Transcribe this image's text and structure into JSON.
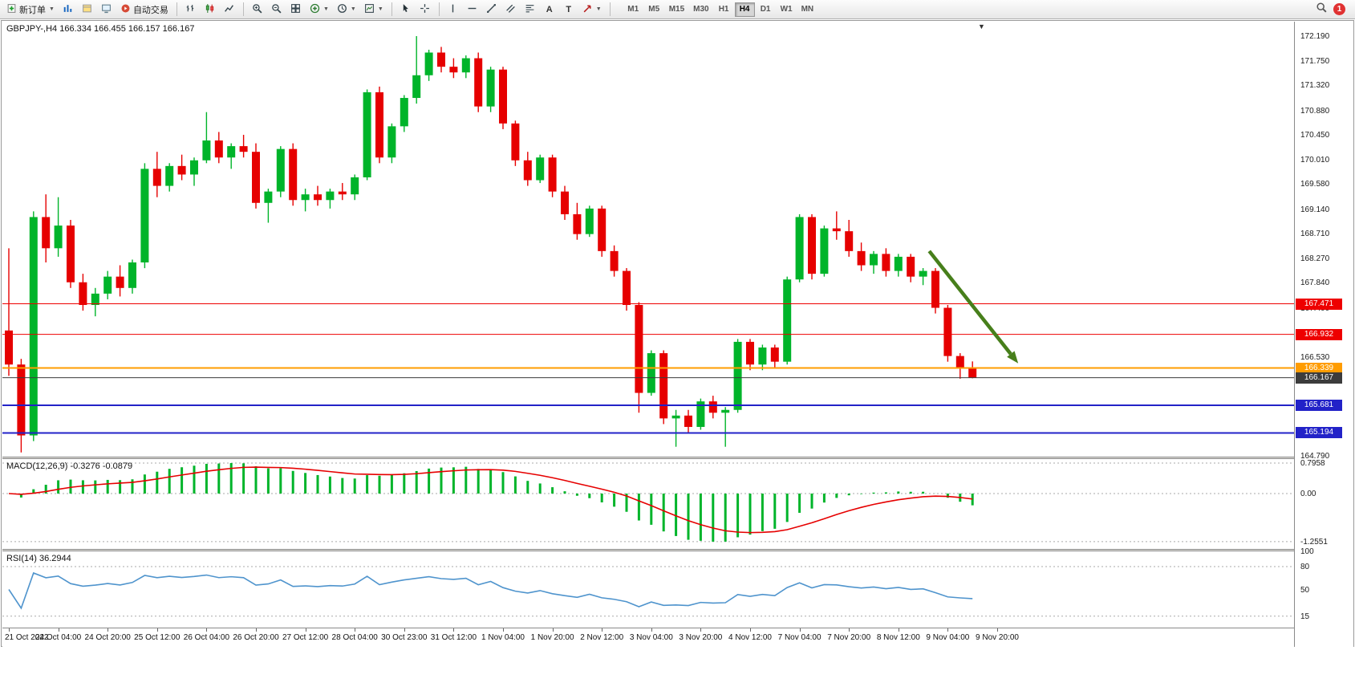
{
  "toolbar": {
    "new_order_label": "新订单",
    "autotrading_label": "自动交易",
    "text_tool_label": "A",
    "label_tool_label": "T",
    "timeframes": [
      "M1",
      "M5",
      "M15",
      "M30",
      "H1",
      "H4",
      "D1",
      "W1",
      "MN"
    ],
    "active_timeframe": "H4",
    "notification_count": "1"
  },
  "chart_title": "GBPJPY-,H4  166.334 166.455 166.157 166.167",
  "macd_panel": {
    "label": "MACD(12,26,9) -0.3276 -0.0879",
    "axis_labels": [
      "0.7958",
      "0.00",
      "-1.2551"
    ],
    "value": -0.3276,
    "signal_value": -0.0879
  },
  "rsi_panel": {
    "label": "RSI(14) 36.2944",
    "axis_labels": [
      "100",
      "80",
      "50",
      "15"
    ],
    "levels": [
      80,
      15
    ],
    "value": 36.2944
  },
  "chart_data": {
    "type": "candlestick",
    "title": "GBPJPY-,H4",
    "symbol": "GBPJPY-",
    "timeframe": "H4",
    "current_ohlc": {
      "open": 166.334,
      "high": 166.455,
      "low": 166.157,
      "close": 166.167
    },
    "y_axis_ticks": [
      172.19,
      171.75,
      171.32,
      170.88,
      170.45,
      170.01,
      169.58,
      169.14,
      168.71,
      168.27,
      167.84,
      167.4,
      166.97,
      166.53,
      166.1,
      165.66,
      165.23,
      164.79
    ],
    "x_labels": [
      "21 Oct 2022",
      "24 Oct 04:00",
      "24 Oct 20:00",
      "25 Oct 12:00",
      "26 Oct 04:00",
      "26 Oct 20:00",
      "27 Oct 12:00",
      "28 Oct 04:00",
      "30 Oct 23:00",
      "31 Oct 12:00",
      "1 Nov 04:00",
      "1 Nov 20:00",
      "2 Nov 12:00",
      "3 Nov 04:00",
      "3 Nov 20:00",
      "4 Nov 12:00",
      "7 Nov 04:00",
      "7 Nov 20:00",
      "8 Nov 12:00",
      "9 Nov 04:00",
      "9 Nov 20:00"
    ],
    "candles_per_x_label": 4,
    "candles_ohlc": [
      [
        167.0,
        168.45,
        166.2,
        166.4
      ],
      [
        166.4,
        166.5,
        164.85,
        165.15
      ],
      [
        165.15,
        169.1,
        165.05,
        169.0
      ],
      [
        169.0,
        169.4,
        168.2,
        168.45
      ],
      [
        168.45,
        169.35,
        168.3,
        168.85
      ],
      [
        168.85,
        168.95,
        167.75,
        167.85
      ],
      [
        167.85,
        168.0,
        167.35,
        167.45
      ],
      [
        167.45,
        167.75,
        167.25,
        167.65
      ],
      [
        167.65,
        168.05,
        167.55,
        167.95
      ],
      [
        167.95,
        168.15,
        167.6,
        167.75
      ],
      [
        167.75,
        168.25,
        167.65,
        168.2
      ],
      [
        168.2,
        169.95,
        168.1,
        169.85
      ],
      [
        169.85,
        170.15,
        169.35,
        169.55
      ],
      [
        169.55,
        169.95,
        169.45,
        169.9
      ],
      [
        169.9,
        170.1,
        169.65,
        169.75
      ],
      [
        169.75,
        170.05,
        169.55,
        170.0
      ],
      [
        170.0,
        170.85,
        169.95,
        170.35
      ],
      [
        170.35,
        170.5,
        169.95,
        170.05
      ],
      [
        170.05,
        170.3,
        169.85,
        170.25
      ],
      [
        170.25,
        170.45,
        170.05,
        170.15
      ],
      [
        170.15,
        170.3,
        169.15,
        169.25
      ],
      [
        169.25,
        169.5,
        168.9,
        169.45
      ],
      [
        169.45,
        170.25,
        169.35,
        170.2
      ],
      [
        170.2,
        170.3,
        169.2,
        169.3
      ],
      [
        169.3,
        169.5,
        169.1,
        169.4
      ],
      [
        169.4,
        169.55,
        169.2,
        169.3
      ],
      [
        169.3,
        169.5,
        169.15,
        169.45
      ],
      [
        169.45,
        169.6,
        169.3,
        169.4
      ],
      [
        169.4,
        169.75,
        169.3,
        169.7
      ],
      [
        169.7,
        171.25,
        169.65,
        171.2
      ],
      [
        171.2,
        171.3,
        169.95,
        170.05
      ],
      [
        170.05,
        170.65,
        169.95,
        170.6
      ],
      [
        170.6,
        171.15,
        170.5,
        171.1
      ],
      [
        171.1,
        172.19,
        171.0,
        171.5
      ],
      [
        171.5,
        171.95,
        171.4,
        171.9
      ],
      [
        171.9,
        172.0,
        171.55,
        171.65
      ],
      [
        171.65,
        171.8,
        171.45,
        171.55
      ],
      [
        171.55,
        171.85,
        171.45,
        171.8
      ],
      [
        171.8,
        171.9,
        170.85,
        170.95
      ],
      [
        170.95,
        171.65,
        170.85,
        171.6
      ],
      [
        171.6,
        171.65,
        170.55,
        170.65
      ],
      [
        170.65,
        170.7,
        169.9,
        170.0
      ],
      [
        170.0,
        170.15,
        169.55,
        169.65
      ],
      [
        169.65,
        170.1,
        169.6,
        170.05
      ],
      [
        170.05,
        170.1,
        169.35,
        169.45
      ],
      [
        169.45,
        169.55,
        168.95,
        169.05
      ],
      [
        169.05,
        169.25,
        168.6,
        168.7
      ],
      [
        168.7,
        169.2,
        168.65,
        169.15
      ],
      [
        169.15,
        169.2,
        168.3,
        168.4
      ],
      [
        168.4,
        168.5,
        167.95,
        168.05
      ],
      [
        168.05,
        168.1,
        167.35,
        167.45
      ],
      [
        167.45,
        167.5,
        165.55,
        165.9
      ],
      [
        165.9,
        166.65,
        165.85,
        166.6
      ],
      [
        166.6,
        166.65,
        165.35,
        165.45
      ],
      [
        165.45,
        165.6,
        164.95,
        165.5
      ],
      [
        165.5,
        165.6,
        165.2,
        165.3
      ],
      [
        165.3,
        165.8,
        165.25,
        165.75
      ],
      [
        165.75,
        165.85,
        165.45,
        165.55
      ],
      [
        165.55,
        165.65,
        164.95,
        165.6
      ],
      [
        165.6,
        166.85,
        165.55,
        166.8
      ],
      [
        166.8,
        166.85,
        166.3,
        166.4
      ],
      [
        166.4,
        166.75,
        166.3,
        166.7
      ],
      [
        166.7,
        166.75,
        166.35,
        166.45
      ],
      [
        166.45,
        167.95,
        166.4,
        167.9
      ],
      [
        167.9,
        169.05,
        167.85,
        169.0
      ],
      [
        169.0,
        169.05,
        167.9,
        168.0
      ],
      [
        168.0,
        168.85,
        167.95,
        168.8
      ],
      [
        168.8,
        169.1,
        168.6,
        168.75
      ],
      [
        168.75,
        168.95,
        168.3,
        168.4
      ],
      [
        168.4,
        168.55,
        168.05,
        168.15
      ],
      [
        168.15,
        168.4,
        168.0,
        168.35
      ],
      [
        168.35,
        168.45,
        167.95,
        168.05
      ],
      [
        168.05,
        168.35,
        167.95,
        168.3
      ],
      [
        168.3,
        168.35,
        167.85,
        167.95
      ],
      [
        167.95,
        168.1,
        167.8,
        168.05
      ],
      [
        168.05,
        168.1,
        167.3,
        167.4
      ],
      [
        167.4,
        167.45,
        166.45,
        166.55
      ],
      [
        166.55,
        166.6,
        166.15,
        166.334
      ],
      [
        166.334,
        166.455,
        166.157,
        166.167
      ]
    ],
    "horizontal_lines": [
      {
        "price": 167.471,
        "label": "167.471",
        "color": "#ee0000",
        "width": 1
      },
      {
        "price": 166.932,
        "label": "166.932",
        "color": "#ee0000",
        "width": 1
      },
      {
        "price": 166.339,
        "label": "166.339",
        "color": "#ff9c00",
        "width": 2
      },
      {
        "price": 166.167,
        "label": "166.167",
        "color": "#3c3c3c",
        "width": 1
      },
      {
        "price": 165.681,
        "label": "165.681",
        "color": "#2222c8",
        "width": 2
      },
      {
        "price": 165.194,
        "label": "165.194",
        "color": "#2222c8",
        "width": 2
      }
    ],
    "trend_arrow": {
      "from_x_index": 74.5,
      "from_price": 168.4,
      "to_x_index": 81.7,
      "to_price": 166.42,
      "color": "#477f1b"
    },
    "colors": {
      "up": "#00b42a",
      "down": "#e60000",
      "macd_hist": "#00b42a",
      "macd_signal": "#e60000",
      "rsi_line": "#4f94cd"
    }
  }
}
